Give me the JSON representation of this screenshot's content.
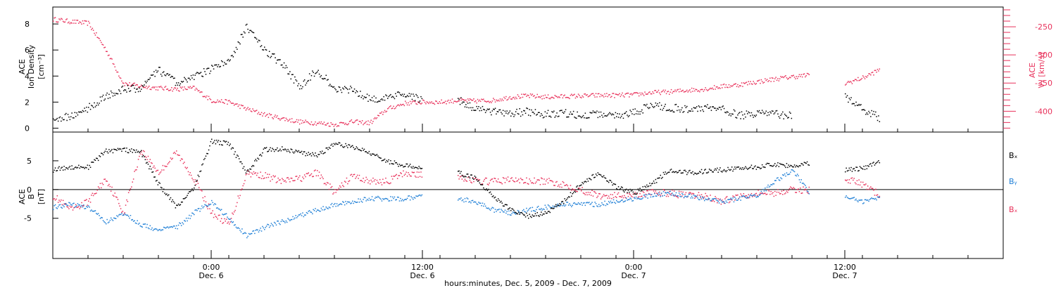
{
  "colors": {
    "black": "#000000",
    "red": "#e8305a",
    "blue": "#1f7fd6",
    "axis": "#000000"
  },
  "x_axis": {
    "label": "hours:minutes, Dec. 5, 2009 - Dec. 7, 2009",
    "range": [
      "2009-12-05 15:00",
      "2009-12-07 21:00"
    ],
    "ticks": [
      {
        "time": "2009-12-06 00:00",
        "line1": "0:00",
        "line2": "Dec. 6"
      },
      {
        "time": "2009-12-06 12:00",
        "line1": "12:00",
        "line2": "Dec. 6"
      },
      {
        "time": "2009-12-07 00:00",
        "line1": "0:00",
        "line2": "Dec. 7"
      },
      {
        "time": "2009-12-07 12:00",
        "line1": "12:00",
        "line2": "Dec. 7"
      }
    ],
    "minor_tick_hours": 2
  },
  "chart_data": [
    {
      "type": "scatter",
      "panel": "top",
      "ylabel_left": [
        "ACE",
        "Ion Density",
        "[cm⁻³]"
      ],
      "ylabel_right": [
        "ACE",
        "Vₓ [km/s]"
      ],
      "ylim_left": [
        -0.3,
        9.3
      ],
      "ylim_right": [
        -437,
        -215
      ],
      "ticks_left": [
        0,
        2,
        4,
        6,
        8
      ],
      "ticks_right": [
        -250,
        -300,
        -350,
        -400
      ],
      "series": [
        {
          "name": "Ion Density",
          "axis": "left",
          "color": "#000000",
          "x": [
            "2009-12-05 15:00",
            "2009-12-05 16:00",
            "2009-12-05 17:00",
            "2009-12-05 18:00",
            "2009-12-05 19:00",
            "2009-12-05 20:00",
            "2009-12-05 21:00",
            "2009-12-05 22:00",
            "2009-12-05 23:00",
            "2009-12-06 00:00",
            "2009-12-06 01:00",
            "2009-12-06 02:00",
            "2009-12-06 03:00",
            "2009-12-06 04:00",
            "2009-12-06 05:00",
            "2009-12-06 06:00",
            "2009-12-06 07:00",
            "2009-12-06 08:00",
            "2009-12-06 09:00",
            "2009-12-06 10:00",
            "2009-12-06 11:00",
            "2009-12-06 12:00",
            "2009-12-06 13:00",
            "2009-12-06 14:00",
            "2009-12-06 15:00",
            "2009-12-06 16:00",
            "2009-12-06 17:00",
            "2009-12-06 18:00",
            "2009-12-06 19:00",
            "2009-12-06 20:00",
            "2009-12-06 21:00",
            "2009-12-06 22:00",
            "2009-12-06 23:00",
            "2009-12-07 00:00",
            "2009-12-07 01:00",
            "2009-12-07 02:00",
            "2009-12-07 03:00",
            "2009-12-07 04:00",
            "2009-12-07 05:00",
            "2009-12-07 06:00",
            "2009-12-07 07:00",
            "2009-12-07 08:00",
            "2009-12-07 09:00",
            "2009-12-07 10:00",
            "2009-12-07 11:30",
            "2009-12-07 12:00",
            "2009-12-07 13:00",
            "2009-12-07 14:00"
          ],
          "y": [
            0.8,
            0.9,
            1.6,
            2.5,
            3.0,
            3.1,
            4.5,
            3.5,
            4.0,
            4.6,
            5.2,
            7.8,
            6.0,
            5.0,
            3.2,
            4.5,
            3.1,
            3.0,
            2.3,
            2.3,
            2.7,
            2.2,
            null,
            2.2,
            1.5,
            1.3,
            1.2,
            1.3,
            1.1,
            1.2,
            1.0,
            1.1,
            1.0,
            1.2,
            1.8,
            1.6,
            1.5,
            1.6,
            1.5,
            1.0,
            1.2,
            1.1,
            1.0,
            null,
            null,
            2.5,
            1.5,
            0.8
          ]
        },
        {
          "name": "Vx",
          "axis": "right",
          "color": "#e8305a",
          "x": [
            "2009-12-05 15:00",
            "2009-12-05 16:00",
            "2009-12-05 17:00",
            "2009-12-05 18:00",
            "2009-12-05 19:00",
            "2009-12-05 20:00",
            "2009-12-05 21:00",
            "2009-12-05 22:00",
            "2009-12-05 23:00",
            "2009-12-06 00:00",
            "2009-12-06 01:00",
            "2009-12-06 02:00",
            "2009-12-06 03:00",
            "2009-12-06 04:00",
            "2009-12-06 05:00",
            "2009-12-06 06:00",
            "2009-12-06 07:00",
            "2009-12-06 08:00",
            "2009-12-06 09:00",
            "2009-12-06 10:00",
            "2009-12-06 11:00",
            "2009-12-06 12:00",
            "2009-12-06 13:00",
            "2009-12-06 14:00",
            "2009-12-06 15:00",
            "2009-12-06 16:00",
            "2009-12-06 17:00",
            "2009-12-06 18:00",
            "2009-12-06 19:00",
            "2009-12-06 20:00",
            "2009-12-06 21:00",
            "2009-12-06 22:00",
            "2009-12-06 23:00",
            "2009-12-07 00:00",
            "2009-12-07 01:00",
            "2009-12-07 02:00",
            "2009-12-07 03:00",
            "2009-12-07 04:00",
            "2009-12-07 05:00",
            "2009-12-07 06:00",
            "2009-12-07 07:00",
            "2009-12-07 08:00",
            "2009-12-07 09:00",
            "2009-12-07 10:00",
            "2009-12-07 11:30",
            "2009-12-07 12:00",
            "2009-12-07 13:00",
            "2009-12-07 14:00"
          ],
          "y": [
            -236,
            -240,
            -243,
            -290,
            -350,
            -355,
            -358,
            -360,
            -358,
            -380,
            -383,
            -395,
            -405,
            -412,
            -418,
            -420,
            -423,
            -418,
            -420,
            -395,
            -385,
            -383,
            -383,
            -380,
            -381,
            -380,
            -374,
            -372,
            -374,
            -373,
            -372,
            -371,
            -371,
            -370,
            -366,
            -365,
            -362,
            -360,
            -355,
            -352,
            -347,
            -342,
            -338,
            -335,
            null,
            -350,
            -340,
            -325
          ]
        }
      ]
    },
    {
      "type": "scatter",
      "panel": "bottom",
      "ylabel_left": [
        "ACE",
        "B",
        "[nT]"
      ],
      "ylim": [
        -12,
        10
      ],
      "ticks": [
        -5,
        0,
        5
      ],
      "zero_line": true,
      "legend": [
        "Bₓ",
        "Bᵧ",
        "Bₓ"
      ],
      "series": [
        {
          "name": "Bx",
          "legend_label": "Bₓ",
          "color": "#000000",
          "x": [
            "2009-12-05 15:00",
            "2009-12-05 16:00",
            "2009-12-05 17:00",
            "2009-12-05 18:00",
            "2009-12-05 19:00",
            "2009-12-05 20:00",
            "2009-12-05 21:00",
            "2009-12-05 22:00",
            "2009-12-05 23:00",
            "2009-12-06 00:00",
            "2009-12-06 01:00",
            "2009-12-06 02:00",
            "2009-12-06 03:00",
            "2009-12-06 04:00",
            "2009-12-06 05:00",
            "2009-12-06 06:00",
            "2009-12-06 07:00",
            "2009-12-06 08:00",
            "2009-12-06 09:00",
            "2009-12-06 10:00",
            "2009-12-06 11:00",
            "2009-12-06 12:00",
            "2009-12-06 13:00",
            "2009-12-06 14:00",
            "2009-12-06 15:00",
            "2009-12-06 16:00",
            "2009-12-06 17:00",
            "2009-12-06 18:00",
            "2009-12-06 19:00",
            "2009-12-06 20:00",
            "2009-12-06 21:00",
            "2009-12-06 22:00",
            "2009-12-06 23:00",
            "2009-12-07 00:00",
            "2009-12-07 01:00",
            "2009-12-07 02:00",
            "2009-12-07 03:00",
            "2009-12-07 04:00",
            "2009-12-07 05:00",
            "2009-12-07 06:00",
            "2009-12-07 07:00",
            "2009-12-07 08:00",
            "2009-12-07 09:00",
            "2009-12-07 10:00",
            "2009-12-07 11:30",
            "2009-12-07 12:00",
            "2009-12-07 13:00",
            "2009-12-07 14:00"
          ],
          "y": [
            3.5,
            4.0,
            4.0,
            6.8,
            7.0,
            6.5,
            1.0,
            -3.0,
            0.5,
            8.5,
            8.0,
            3.0,
            7.0,
            7.2,
            6.5,
            6.0,
            8.0,
            7.5,
            6.5,
            5.0,
            4.2,
            4.0,
            null,
            3.0,
            2.0,
            -1.0,
            -3.5,
            -4.5,
            -4.0,
            -2.0,
            1.0,
            3.0,
            0.5,
            -0.5,
            1.0,
            3.5,
            3.0,
            3.2,
            3.5,
            3.8,
            4.0,
            4.5,
            4.2,
            4.6,
            null,
            3.5,
            3.8,
            5.0
          ]
        },
        {
          "name": "By",
          "legend_label": "Bᵧ",
          "color": "#1f7fd6",
          "x": [
            "2009-12-05 15:00",
            "2009-12-05 16:00",
            "2009-12-05 17:00",
            "2009-12-05 18:00",
            "2009-12-05 19:00",
            "2009-12-05 20:00",
            "2009-12-05 21:00",
            "2009-12-05 22:00",
            "2009-12-05 23:00",
            "2009-12-06 00:00",
            "2009-12-06 01:00",
            "2009-12-06 02:00",
            "2009-12-06 03:00",
            "2009-12-06 04:00",
            "2009-12-06 05:00",
            "2009-12-06 06:00",
            "2009-12-06 07:00",
            "2009-12-06 08:00",
            "2009-12-06 09:00",
            "2009-12-06 10:00",
            "2009-12-06 11:00",
            "2009-12-06 12:00",
            "2009-12-06 13:00",
            "2009-12-06 14:00",
            "2009-12-06 15:00",
            "2009-12-06 16:00",
            "2009-12-06 17:00",
            "2009-12-06 18:00",
            "2009-12-06 19:00",
            "2009-12-06 20:00",
            "2009-12-06 21:00",
            "2009-12-06 22:00",
            "2009-12-06 23:00",
            "2009-12-07 00:00",
            "2009-12-07 01:00",
            "2009-12-07 02:00",
            "2009-12-07 03:00",
            "2009-12-07 04:00",
            "2009-12-07 05:00",
            "2009-12-07 06:00",
            "2009-12-07 07:00",
            "2009-12-07 08:00",
            "2009-12-07 09:00",
            "2009-12-07 10:00",
            "2009-12-07 11:30",
            "2009-12-07 12:00",
            "2009-12-07 13:00",
            "2009-12-07 14:00"
          ],
          "y": [
            -3.0,
            -2.5,
            -3.0,
            -5.5,
            -4.0,
            -6.0,
            -7.0,
            -6.5,
            -4.0,
            -2.0,
            -5.0,
            -8.0,
            -6.5,
            -5.5,
            -4.5,
            -3.5,
            -2.5,
            -2.0,
            -1.5,
            -1.5,
            -1.5,
            -1.0,
            null,
            -1.5,
            -2.0,
            -3.5,
            -4.0,
            -3.5,
            -3.0,
            -2.5,
            -2.5,
            -2.5,
            -2.0,
            -1.5,
            -1.0,
            -0.5,
            -1.0,
            -1.5,
            -2.0,
            -1.5,
            -1.0,
            1.5,
            3.5,
            -0.5,
            null,
            -1.0,
            -2.0,
            -1.5
          ]
        },
        {
          "name": "Bz",
          "legend_label": "Bₓ",
          "color": "#e8305a",
          "x": [
            "2009-12-05 15:00",
            "2009-12-05 16:00",
            "2009-12-05 17:00",
            "2009-12-05 18:00",
            "2009-12-05 19:00",
            "2009-12-05 20:00",
            "2009-12-05 21:00",
            "2009-12-05 22:00",
            "2009-12-05 23:00",
            "2009-12-06 00:00",
            "2009-12-06 01:00",
            "2009-12-06 02:00",
            "2009-12-06 03:00",
            "2009-12-06 04:00",
            "2009-12-06 05:00",
            "2009-12-06 06:00",
            "2009-12-06 07:00",
            "2009-12-06 08:00",
            "2009-12-06 09:00",
            "2009-12-06 10:00",
            "2009-12-06 11:00",
            "2009-12-06 12:00",
            "2009-12-06 13:00",
            "2009-12-06 14:00",
            "2009-12-06 15:00",
            "2009-12-06 16:00",
            "2009-12-06 17:00",
            "2009-12-06 18:00",
            "2009-12-06 19:00",
            "2009-12-06 20:00",
            "2009-12-06 21:00",
            "2009-12-06 22:00",
            "2009-12-06 23:00",
            "2009-12-07 00:00",
            "2009-12-07 01:00",
            "2009-12-07 02:00",
            "2009-12-07 03:00",
            "2009-12-07 04:00",
            "2009-12-07 05:00",
            "2009-12-07 06:00",
            "2009-12-07 07:00",
            "2009-12-07 08:00",
            "2009-12-07 09:00",
            "2009-12-07 10:00",
            "2009-12-07 11:30",
            "2009-12-07 12:00",
            "2009-12-07 13:00",
            "2009-12-07 14:00"
          ],
          "y": [
            -1.0,
            -3.5,
            -2.0,
            2.0,
            -4.0,
            7.0,
            3.0,
            6.5,
            2.0,
            -4.0,
            -6.0,
            3.0,
            2.5,
            1.5,
            2.0,
            3.0,
            -0.5,
            2.5,
            1.5,
            1.5,
            3.0,
            2.5,
            null,
            2.5,
            1.5,
            1.5,
            1.8,
            1.5,
            1.5,
            1.0,
            0.0,
            -1.0,
            -1.0,
            -0.8,
            -0.5,
            -0.5,
            -1.0,
            -1.0,
            -2.0,
            -1.0,
            -0.5,
            -0.5,
            0.0,
            0.0,
            null,
            2.0,
            1.0,
            -1.0
          ]
        }
      ]
    }
  ]
}
